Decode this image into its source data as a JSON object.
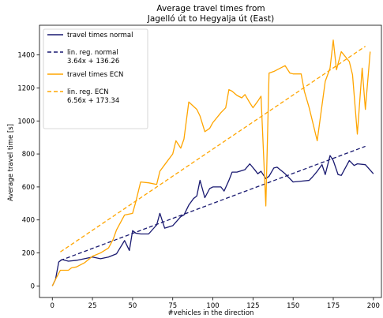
{
  "chart_data": {
    "type": "line",
    "title_lines": [
      "Average travel times from",
      "Jagelló út to Hegyalja út (East)"
    ],
    "xlabel": "#vehicles in the direction",
    "ylabel": "Average travel time [s]",
    "xlim": [
      -8,
      205
    ],
    "ylim": [
      -70,
      1580
    ],
    "xticks": [
      0,
      25,
      50,
      75,
      100,
      125,
      150,
      175,
      200
    ],
    "yticks": [
      0,
      200,
      400,
      600,
      800,
      1000,
      1200,
      1400
    ],
    "grid": false,
    "legend_position": "top-left",
    "colors": {
      "normal": "#191970",
      "ecn": "#FFA500"
    },
    "series": [
      {
        "name": "travel times normal",
        "style": "solid",
        "color": "#191970",
        "x": [
          0,
          2,
          4,
          6,
          10,
          15,
          20,
          25,
          30,
          35,
          40,
          45,
          48,
          50,
          52,
          55,
          60,
          65,
          67,
          70,
          75,
          80,
          82,
          85,
          88,
          90,
          92,
          95,
          98,
          100,
          105,
          107,
          110,
          112,
          115,
          120,
          123,
          126,
          128,
          130,
          133,
          135,
          138,
          140,
          145,
          150,
          155,
          160,
          162,
          165,
          168,
          170,
          173,
          175,
          178,
          180,
          185,
          188,
          190,
          195,
          200
        ],
        "y": [
          0,
          40,
          145,
          160,
          150,
          155,
          165,
          175,
          165,
          175,
          195,
          275,
          215,
          335,
          320,
          315,
          315,
          370,
          440,
          350,
          365,
          420,
          430,
          490,
          530,
          545,
          640,
          535,
          590,
          600,
          600,
          575,
          640,
          690,
          690,
          705,
          740,
          705,
          680,
          695,
          650,
          665,
          715,
          720,
          680,
          630,
          635,
          640,
          660,
          695,
          735,
          675,
          790,
          760,
          675,
          670,
          760,
          730,
          740,
          735,
          680
        ]
      },
      {
        "name": "lin. reg. normal",
        "equation": "3.64x + 136.26",
        "style": "dashed",
        "color": "#191970",
        "x": [
          5,
          195
        ],
        "y": [
          154.5,
          846.1
        ]
      },
      {
        "name": "travel times ECN",
        "style": "solid",
        "color": "#FFA500",
        "x": [
          0,
          2,
          5,
          10,
          12,
          15,
          20,
          25,
          30,
          35,
          38,
          40,
          45,
          50,
          52,
          55,
          60,
          65,
          67,
          70,
          75,
          77,
          80,
          82,
          85,
          90,
          92,
          95,
          98,
          100,
          105,
          108,
          110,
          112,
          115,
          118,
          120,
          123,
          125,
          128,
          130,
          133,
          135,
          138,
          140,
          145,
          148,
          150,
          155,
          157,
          160,
          165,
          170,
          173,
          175,
          177,
          180,
          185,
          187,
          190,
          193,
          195,
          198
        ],
        "y": [
          0,
          40,
          95,
          95,
          110,
          115,
          140,
          180,
          200,
          230,
          285,
          340,
          430,
          440,
          510,
          630,
          625,
          615,
          695,
          735,
          800,
          880,
          835,
          890,
          1115,
          1070,
          1030,
          935,
          955,
          990,
          1050,
          1080,
          1190,
          1180,
          1155,
          1140,
          1160,
          1110,
          1080,
          1120,
          1150,
          485,
          1290,
          1300,
          1310,
          1335,
          1290,
          1285,
          1285,
          1180,
          1080,
          880,
          1240,
          1320,
          1490,
          1310,
          1420,
          1360,
          1280,
          920,
          1320,
          1070,
          1420
        ]
      },
      {
        "name": "lin. reg. ECN",
        "equation": "6.56x + 173.34",
        "style": "dashed",
        "color": "#FFA500",
        "x": [
          5,
          195
        ],
        "y": [
          206.1,
          1452.5
        ]
      }
    ]
  },
  "legend": [
    {
      "line1": "travel times normal",
      "line2": "",
      "color": "#191970",
      "dashed": false
    },
    {
      "line1": "lin. reg. normal",
      "line2": "3.64x + 136.26",
      "color": "#191970",
      "dashed": true
    },
    {
      "line1": "travel times ECN",
      "line2": "",
      "color": "#FFA500",
      "dashed": false
    },
    {
      "line1": "lin. reg. ECN",
      "line2": "6.56x + 173.34",
      "color": "#FFA500",
      "dashed": true
    }
  ]
}
